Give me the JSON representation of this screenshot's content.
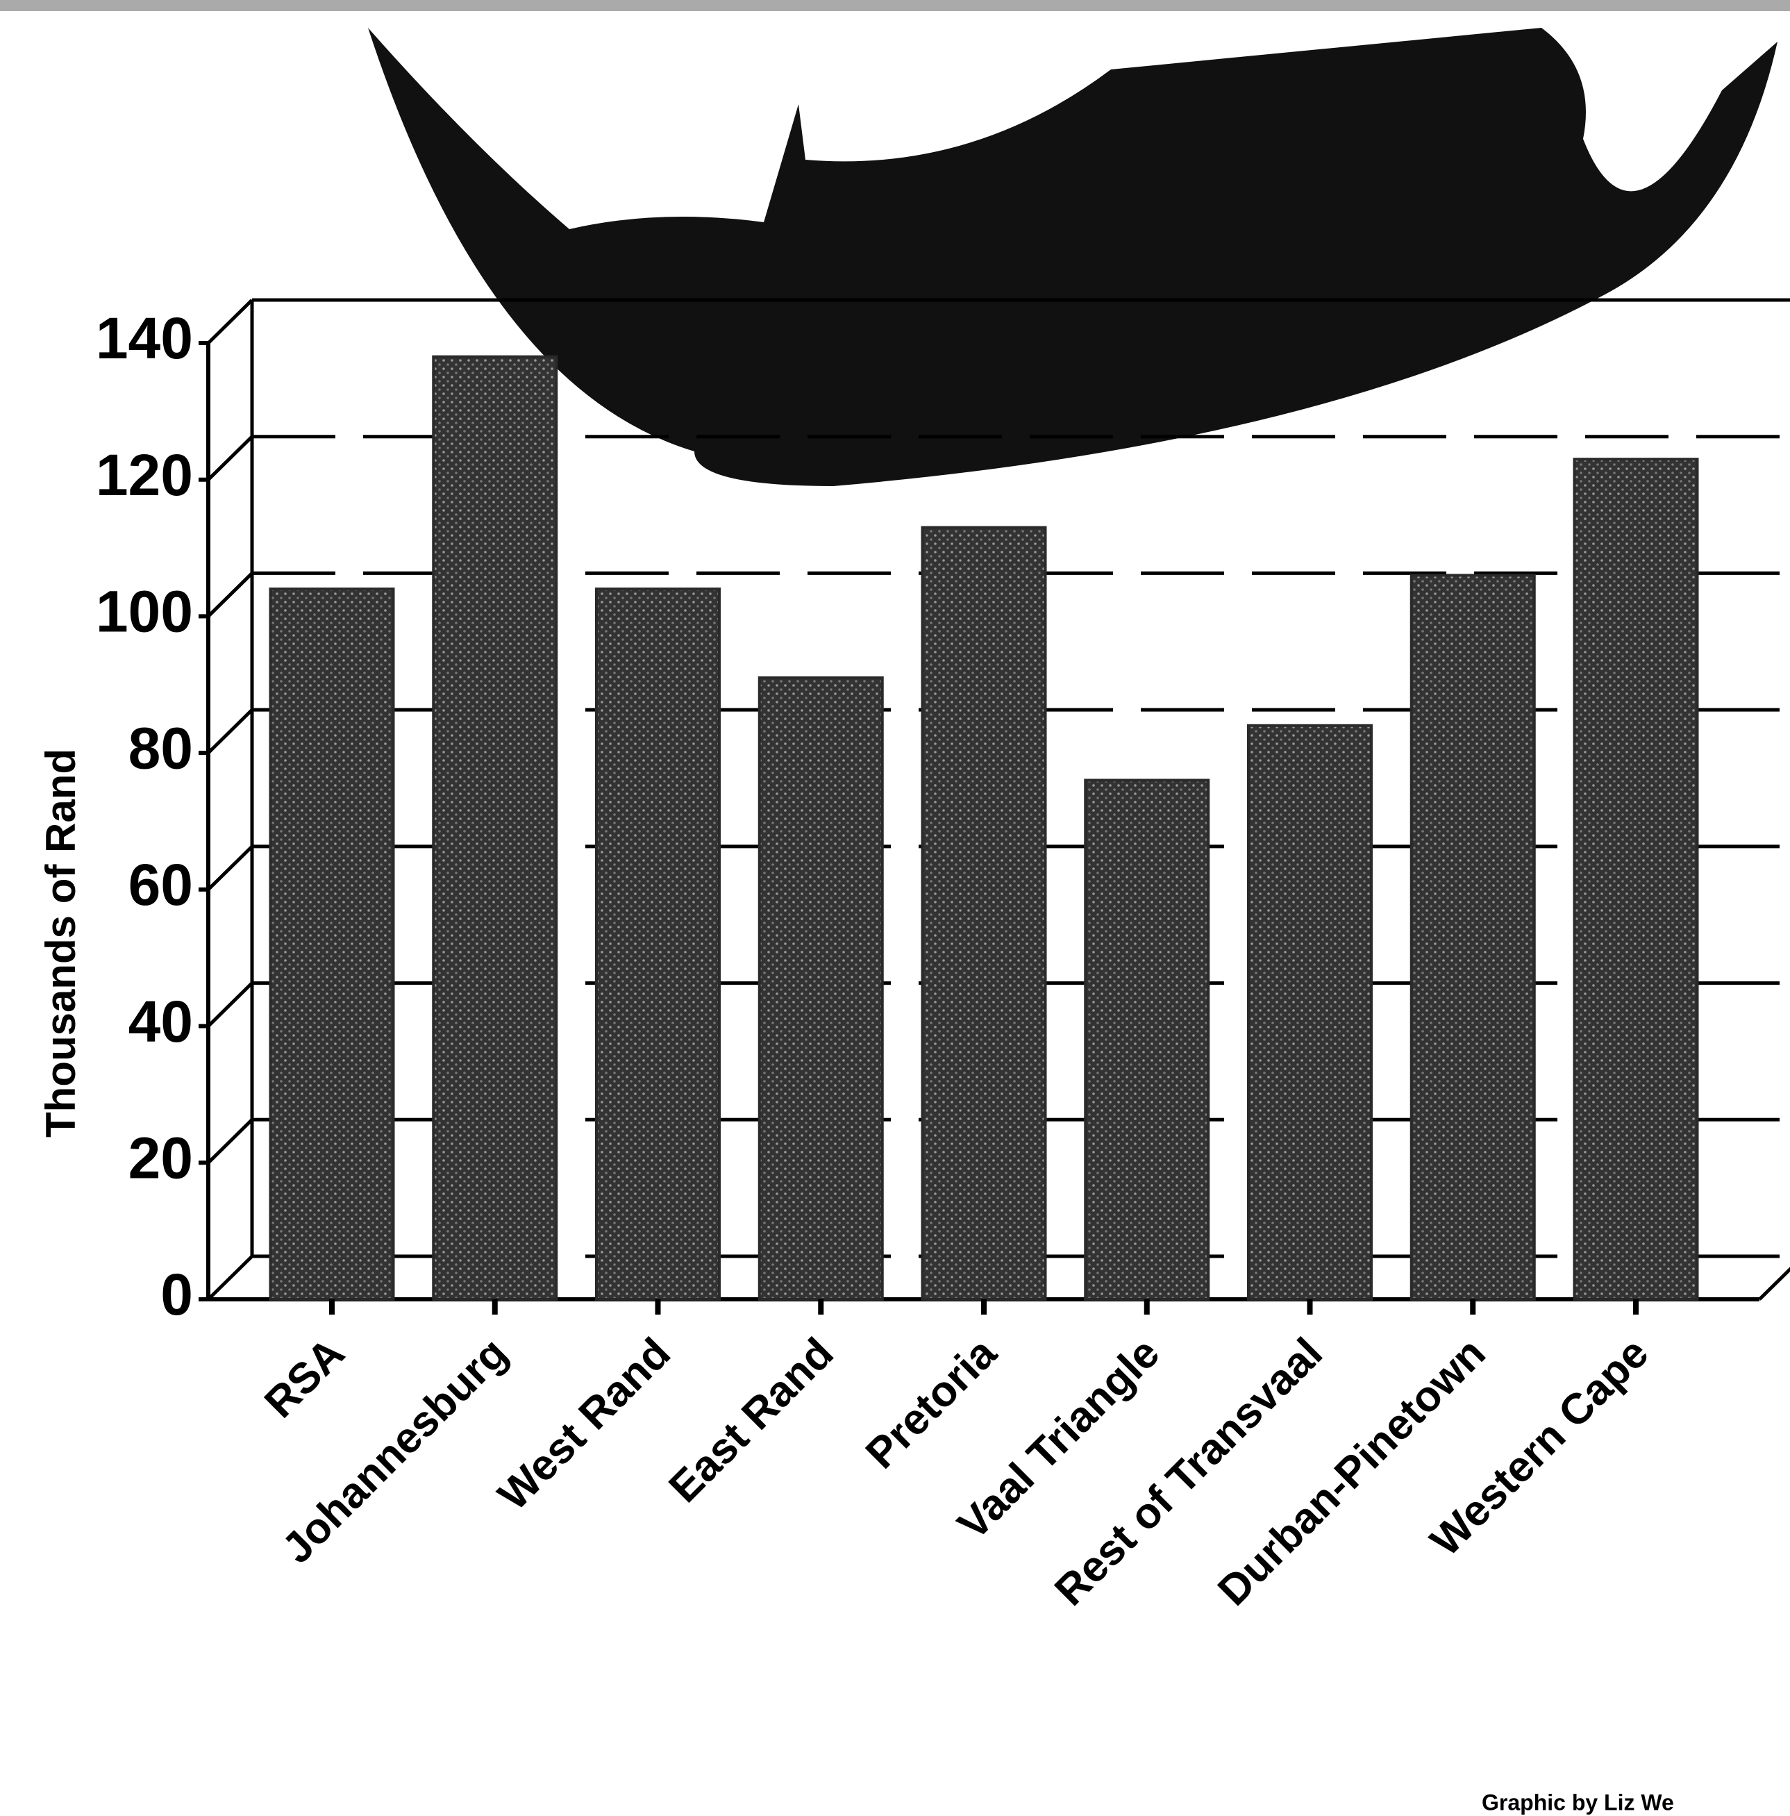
{
  "chart_data": {
    "type": "bar",
    "ylabel": "Thousands of Rand",
    "categories": [
      "RSA",
      "Johannesburg",
      "West Rand",
      "East Rand",
      "Pretoria",
      "Vaal Triangle",
      "Rest of Transvaal",
      "Durban-Pinetown",
      "Western Cape"
    ],
    "values": [
      104,
      138,
      104,
      91,
      113,
      76,
      84,
      106,
      123
    ],
    "color": "#2a2a2a",
    "ylim": [
      0,
      140
    ],
    "yticks": [
      0,
      20,
      40,
      60,
      80,
      100,
      120,
      140
    ],
    "grid": true,
    "credit": "Graphic by Liz We"
  }
}
